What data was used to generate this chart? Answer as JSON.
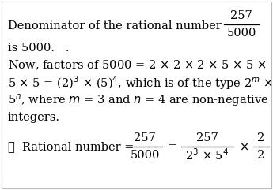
{
  "background_color": "#ffffff",
  "border_color": "#bbbbbb",
  "fs": 10.5,
  "line1_prefix": "Denominator of the rational number ",
  "line1_num": "257",
  "line1_den": "5000",
  "line2": "is 5000.   .",
  "line3": "Now, factors of 5000 = 2 × 2 × 2 × 5 × 5 ×",
  "line4": "5 × 5 = (2)$^3$ × (5)$^4$, which is of the type 2$^m$ ×",
  "line5": "5$^n$, where $m$ = 3 and $n$ = 4 are non-negative",
  "line6": "integers.",
  "bottom_prefix": "∴  Rational number = ",
  "f1_num": "257",
  "f1_den": "5000",
  "f2_num": "257",
  "f2_den": "2$^3$ × 5$^4$",
  "f3_num": "2",
  "f3_den": "2"
}
